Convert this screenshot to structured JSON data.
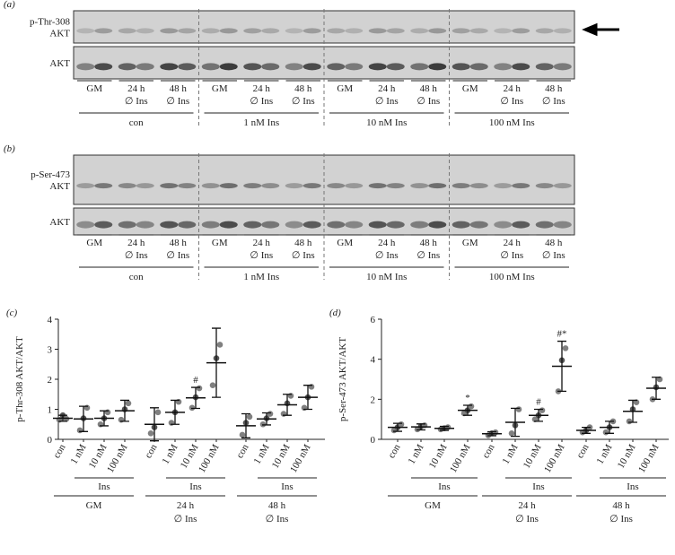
{
  "blots": [
    {
      "panel": "(a)",
      "rows": [
        {
          "label": [
            "p-Thr-308",
            "AKT"
          ]
        },
        {
          "label": [
            "AKT"
          ]
        }
      ],
      "groups": [
        {
          "label": "con",
          "lanes": [
            [
              "GM"
            ],
            [
              "24 h",
              "∅ Ins"
            ],
            [
              "48 h",
              "∅ Ins"
            ]
          ]
        },
        {
          "label": "1 nM Ins",
          "lanes": [
            [
              "GM"
            ],
            [
              "24 h",
              "∅ Ins"
            ],
            [
              "48 h",
              "∅ Ins"
            ]
          ]
        },
        {
          "label": "10 nM Ins",
          "lanes": [
            [
              "GM"
            ],
            [
              "24 h",
              "∅ Ins"
            ],
            [
              "48 h",
              "∅ Ins"
            ]
          ]
        },
        {
          "label": "100 nM Ins",
          "lanes": [
            [
              "GM"
            ],
            [
              "24 h",
              "∅ Ins"
            ],
            [
              "48 h",
              "∅ Ins"
            ]
          ]
        }
      ]
    },
    {
      "panel": "(b)",
      "rows": [
        {
          "label": [
            "p-Ser-473",
            "AKT"
          ]
        },
        {
          "label": [
            "AKT"
          ]
        }
      ],
      "groups": [
        {
          "label": "con",
          "lanes": [
            [
              "GM"
            ],
            [
              "24 h",
              "∅ Ins"
            ],
            [
              "48 h",
              "∅ Ins"
            ]
          ]
        },
        {
          "label": "1 nM Ins",
          "lanes": [
            [
              "GM"
            ],
            [
              "24 h",
              "∅ Ins"
            ],
            [
              "48 h",
              "∅ Ins"
            ]
          ]
        },
        {
          "label": "10 nM Ins",
          "lanes": [
            [
              "GM"
            ],
            [
              "24 h",
              "∅ Ins"
            ],
            [
              "48 h",
              "∅ Ins"
            ]
          ]
        },
        {
          "label": "100 nM Ins",
          "lanes": [
            [
              "GM"
            ],
            [
              "24 h",
              "∅ Ins"
            ],
            [
              "48 h",
              "∅ Ins"
            ]
          ]
        }
      ]
    }
  ],
  "chart_data": [
    {
      "type": "dotplot",
      "title": "(c)",
      "ylabel": "p-Thr-308 AKT/AKT",
      "ylim": [
        0,
        4
      ],
      "yticks": [
        0,
        1,
        2,
        3,
        4
      ],
      "categories": [
        "con",
        "1 nM",
        "10 nM",
        "100 nM",
        "con",
        "1 nM",
        "10 nM",
        "100 nM",
        "con",
        "1 nM",
        "10 nM",
        "100 nM"
      ],
      "groups": [
        {
          "sublabel": "Ins",
          "label": [
            "GM"
          ]
        },
        {
          "sublabel": "Ins",
          "label": [
            "24 h",
            "∅ Ins"
          ]
        },
        {
          "sublabel": "Ins",
          "label": [
            "48 h",
            "∅ Ins"
          ]
        }
      ],
      "mean": [
        0.7,
        0.68,
        0.7,
        0.95,
        0.5,
        0.9,
        1.38,
        2.55,
        0.45,
        0.68,
        1.15,
        1.4
      ],
      "sd": [
        0.1,
        0.42,
        0.25,
        0.35,
        0.55,
        0.4,
        0.35,
        1.15,
        0.4,
        0.2,
        0.35,
        0.4
      ],
      "points": [
        [
          0.65,
          0.8,
          0.68
        ],
        [
          0.3,
          0.7,
          1.05
        ],
        [
          0.5,
          0.7,
          0.9
        ],
        [
          0.65,
          1.0,
          1.2
        ],
        [
          0.2,
          0.4,
          0.9
        ],
        [
          0.55,
          0.9,
          1.25
        ],
        [
          1.05,
          1.4,
          1.7
        ],
        [
          1.8,
          2.7,
          3.15
        ],
        [
          0.15,
          0.55,
          0.75
        ],
        [
          0.5,
          0.7,
          0.85
        ],
        [
          0.85,
          1.2,
          1.45
        ],
        [
          1.05,
          1.4,
          1.75
        ]
      ],
      "annotations": [
        null,
        null,
        null,
        null,
        null,
        null,
        "#",
        null,
        null,
        null,
        null,
        null
      ],
      "color": "#808080"
    },
    {
      "type": "dotplot",
      "title": "(d)",
      "ylabel": "p-Ser-473 AKT/AKT",
      "ylim": [
        0,
        6
      ],
      "yticks": [
        0,
        2,
        4,
        6
      ],
      "categories": [
        "con",
        "1 nM",
        "10 nM",
        "100 nM",
        "con",
        "1 nM",
        "10 nM",
        "100 nM",
        "con",
        "1 nM",
        "10 nM",
        "100 nM"
      ],
      "groups": [
        {
          "sublabel": "Ins",
          "label": [
            "GM"
          ]
        },
        {
          "sublabel": "Ins",
          "label": [
            "24 h",
            "∅ Ins"
          ]
        },
        {
          "sublabel": "Ins",
          "label": [
            "48 h",
            "∅ Ins"
          ]
        }
      ],
      "mean": [
        0.6,
        0.62,
        0.55,
        1.45,
        0.28,
        0.85,
        1.2,
        3.65,
        0.45,
        0.6,
        1.4,
        2.55
      ],
      "sd": [
        0.2,
        0.15,
        0.1,
        0.25,
        0.1,
        0.7,
        0.3,
        1.25,
        0.15,
        0.3,
        0.55,
        0.55
      ],
      "points": [
        [
          0.45,
          0.6,
          0.75
        ],
        [
          0.5,
          0.65,
          0.7
        ],
        [
          0.5,
          0.55,
          0.6
        ],
        [
          1.3,
          1.45,
          1.65
        ],
        [
          0.2,
          0.3,
          0.35
        ],
        [
          0.3,
          0.7,
          1.5
        ],
        [
          1.0,
          1.2,
          1.45
        ],
        [
          2.4,
          3.95,
          4.55
        ],
        [
          0.35,
          0.45,
          0.6
        ],
        [
          0.35,
          0.6,
          0.9
        ],
        [
          0.9,
          1.5,
          1.85
        ],
        [
          2.0,
          2.6,
          3.0
        ]
      ],
      "annotations": [
        null,
        null,
        null,
        "*",
        null,
        null,
        "#",
        "#*",
        null,
        null,
        null,
        null
      ],
      "color": "#808080"
    }
  ]
}
